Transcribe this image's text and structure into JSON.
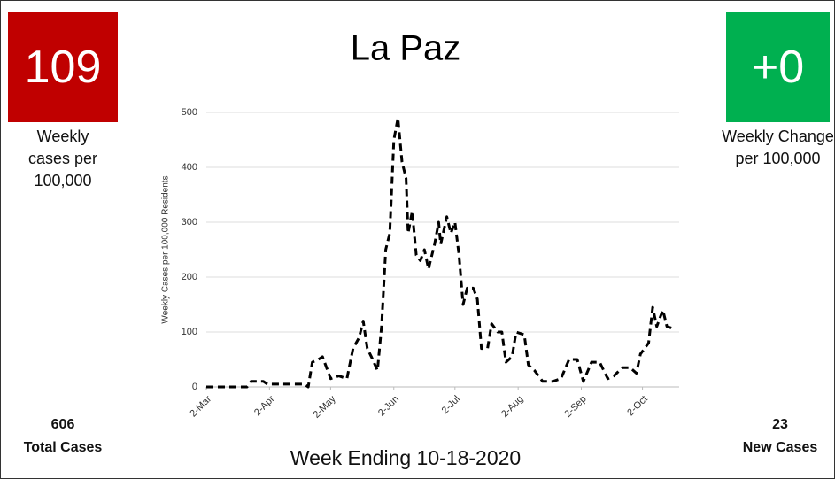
{
  "left_panel": {
    "value": "109",
    "label": "Weekly cases per 100,000",
    "total": "606",
    "total_label": "Total Cases",
    "color": "#c00000"
  },
  "right_panel": {
    "value": "+0",
    "label": "Weekly Change per 100,000",
    "total": "23",
    "total_label": "New Cases",
    "color": "#00b050"
  },
  "footer": "Week Ending 10-18-2020",
  "chart_data": {
    "type": "line",
    "title": "La Paz",
    "y_label": "Weekly Cases per 100,000 Residents",
    "color": "#000000",
    "line_style": "dashed",
    "grid": true,
    "x": [
      0,
      20,
      22,
      28,
      30,
      48,
      50,
      52,
      55,
      57,
      61,
      65,
      69,
      72,
      75,
      77,
      79,
      81,
      84,
      86,
      88,
      90,
      92,
      94,
      96,
      98,
      99,
      101,
      103,
      105,
      107,
      109,
      112,
      114,
      115,
      118,
      120,
      122,
      124,
      126,
      128,
      131,
      133,
      135,
      138,
      140,
      143,
      145,
      147,
      150,
      152,
      156,
      158,
      161,
      165,
      170,
      174,
      178,
      182,
      185,
      189,
      193,
      197,
      200,
      204,
      208,
      211,
      213,
      217,
      219,
      221,
      224,
      226,
      230
    ],
    "values": [
      0,
      0,
      10,
      10,
      5,
      5,
      0,
      45,
      50,
      55,
      15,
      20,
      15,
      70,
      90,
      120,
      70,
      55,
      30,
      110,
      250,
      280,
      450,
      490,
      410,
      380,
      280,
      320,
      240,
      230,
      250,
      215,
      260,
      300,
      260,
      310,
      280,
      300,
      240,
      150,
      180,
      180,
      160,
      70,
      70,
      115,
      100,
      100,
      45,
      55,
      100,
      95,
      40,
      30,
      10,
      10,
      15,
      50,
      50,
      10,
      45,
      45,
      15,
      20,
      35,
      35,
      25,
      60,
      80,
      145,
      110,
      140,
      110,
      105
    ],
    "xlim": [
      0,
      232
    ],
    "xticks": [
      {
        "value": 0,
        "label": "2-Mar"
      },
      {
        "value": 31,
        "label": "2-Apr"
      },
      {
        "value": 61,
        "label": "2-May"
      },
      {
        "value": 92,
        "label": "2-Jun"
      },
      {
        "value": 122,
        "label": "2-Jul"
      },
      {
        "value": 153,
        "label": "2-Aug"
      },
      {
        "value": 184,
        "label": "2-Sep"
      },
      {
        "value": 214,
        "label": "2-Oct"
      }
    ],
    "ylim": [
      0,
      500
    ],
    "yticks": [
      0,
      100,
      200,
      300,
      400,
      500
    ]
  }
}
